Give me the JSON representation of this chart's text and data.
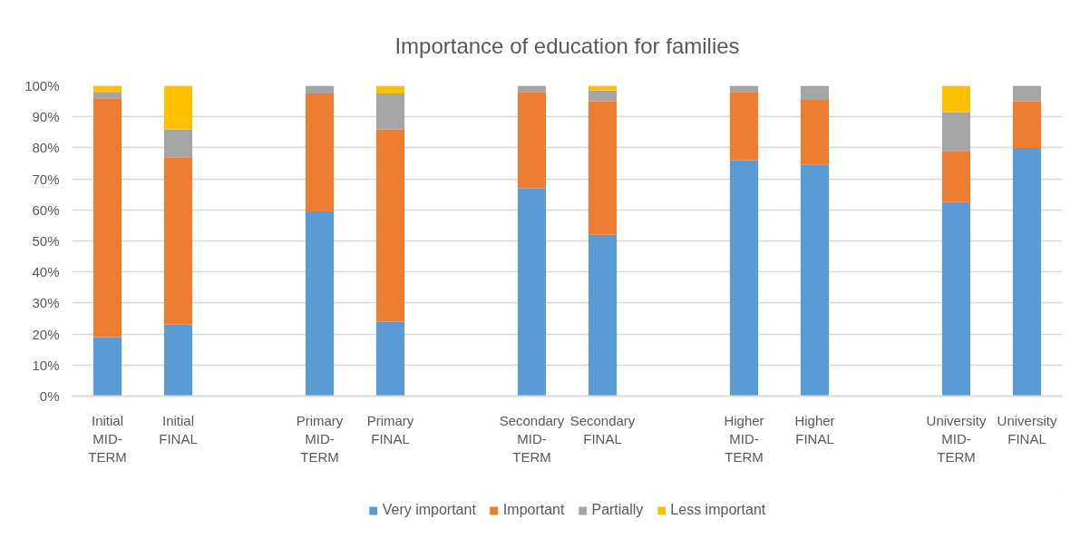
{
  "chart_data": {
    "type": "bar",
    "title": "Importance of education for families",
    "categories": [
      "Initial MID-TERM",
      "Initial FINAL",
      null,
      "Primary MID-TERM",
      "Primary FINAL",
      null,
      "Secondary MID-TERM",
      "Secondary FINAL",
      null,
      "Higher MID-TERM",
      "Higher FINAL",
      null,
      "University MID-TERM",
      "University FINAL"
    ],
    "stacked": true,
    "series": [
      {
        "name": "Very important",
        "color": "#5b9bd5",
        "values": [
          19,
          23,
          null,
          59.5,
          24,
          null,
          67,
          52,
          null,
          76,
          74.5,
          null,
          62.5,
          80
        ]
      },
      {
        "name": "Important",
        "color": "#ed7d31",
        "values": [
          77,
          54,
          null,
          38,
          62,
          null,
          31,
          43,
          null,
          22,
          21,
          null,
          16.5,
          15
        ]
      },
      {
        "name": "Partially",
        "color": "#a5a5a5",
        "values": [
          2,
          9,
          null,
          2.5,
          11.5,
          null,
          2,
          3.5,
          null,
          2,
          4.5,
          null,
          12.5,
          5
        ]
      },
      {
        "name": "Less important",
        "color": "#ffc000",
        "values": [
          2,
          14,
          null,
          null,
          2.5,
          null,
          null,
          1.5,
          null,
          null,
          null,
          null,
          8.5,
          null
        ]
      }
    ],
    "ylim": [
      0,
      100
    ],
    "yticks": [
      {
        "value": 0,
        "label": "0%"
      },
      {
        "value": 10,
        "label": "10%"
      },
      {
        "value": 20,
        "label": "20%"
      },
      {
        "value": 30,
        "label": "30%"
      },
      {
        "value": 40,
        "label": "40%"
      },
      {
        "value": 50,
        "label": "50%"
      },
      {
        "value": 60,
        "label": "60%"
      },
      {
        "value": 70,
        "label": "70%"
      },
      {
        "value": 80,
        "label": "80%"
      },
      {
        "value": 90,
        "label": "90%"
      },
      {
        "value": 100,
        "label": "100%"
      }
    ],
    "grid": "y",
    "legend": "bottom"
  }
}
